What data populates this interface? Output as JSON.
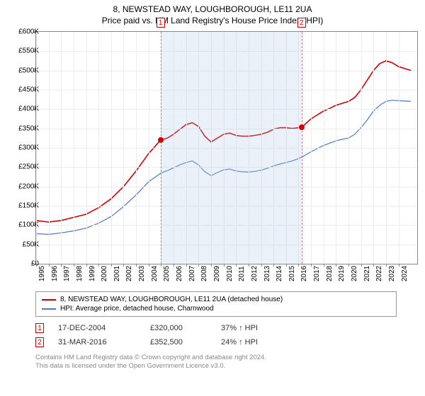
{
  "title": "8, NEWSTEAD WAY, LOUGHBOROUGH, LE11 2UA",
  "subtitle": "Price paid vs. HM Land Registry's House Price Index (HPI)",
  "chart": {
    "type": "line",
    "background_color": "#ffffff",
    "grid_color": "#ececec",
    "axis_color": "#888888",
    "tick_fontsize": 10,
    "x_years": [
      1995,
      1996,
      1997,
      1998,
      1999,
      2000,
      2001,
      2002,
      2003,
      2004,
      2005,
      2006,
      2007,
      2008,
      2009,
      2010,
      2011,
      2012,
      2013,
      2014,
      2015,
      2016,
      2017,
      2018,
      2019,
      2020,
      2021,
      2022,
      2023,
      2024
    ],
    "x_range": [
      1995,
      2025.5
    ],
    "y_range": [
      0,
      600
    ],
    "y_ticks": [
      0,
      50,
      100,
      150,
      200,
      250,
      300,
      350,
      400,
      450,
      500,
      550,
      600
    ],
    "y_tick_labels": [
      "£0",
      "£50K",
      "£100K",
      "£150K",
      "£200K",
      "£250K",
      "£300K",
      "£350K",
      "£400K",
      "£450K",
      "£500K",
      "£550K",
      "£600K"
    ],
    "shade_band": {
      "x_start": 2004.96,
      "x_end": 2016.25,
      "color": "rgba(170,200,230,0.25)"
    },
    "series": {
      "price_paid": {
        "color": "#d00000",
        "line_width": 1.6,
        "points": [
          [
            1995,
            112
          ],
          [
            1996,
            108
          ],
          [
            1997,
            112
          ],
          [
            1998,
            120
          ],
          [
            1999,
            128
          ],
          [
            2000,
            145
          ],
          [
            2001,
            168
          ],
          [
            2002,
            200
          ],
          [
            2003,
            240
          ],
          [
            2004,
            285
          ],
          [
            2004.96,
            320
          ],
          [
            2005.5,
            325
          ],
          [
            2006,
            335
          ],
          [
            2006.5,
            348
          ],
          [
            2007,
            360
          ],
          [
            2007.5,
            365
          ],
          [
            2008,
            355
          ],
          [
            2008.5,
            330
          ],
          [
            2009,
            315
          ],
          [
            2009.5,
            325
          ],
          [
            2010,
            335
          ],
          [
            2010.5,
            338
          ],
          [
            2011,
            332
          ],
          [
            2011.5,
            330
          ],
          [
            2012,
            330
          ],
          [
            2012.5,
            332
          ],
          [
            2013,
            335
          ],
          [
            2013.5,
            340
          ],
          [
            2014,
            348
          ],
          [
            2014.5,
            352
          ],
          [
            2015,
            352
          ],
          [
            2015.5,
            350
          ],
          [
            2016,
            352
          ],
          [
            2016.25,
            352.5
          ],
          [
            2016.5,
            360
          ],
          [
            2017,
            375
          ],
          [
            2017.5,
            385
          ],
          [
            2018,
            395
          ],
          [
            2018.5,
            402
          ],
          [
            2019,
            410
          ],
          [
            2019.5,
            415
          ],
          [
            2020,
            420
          ],
          [
            2020.5,
            430
          ],
          [
            2021,
            450
          ],
          [
            2021.5,
            475
          ],
          [
            2022,
            500
          ],
          [
            2022.5,
            518
          ],
          [
            2023,
            525
          ],
          [
            2023.5,
            520
          ],
          [
            2024,
            510
          ],
          [
            2024.5,
            505
          ],
          [
            2025,
            500
          ]
        ]
      },
      "hpi": {
        "color": "#4a78c8",
        "line_width": 1.2,
        "points": [
          [
            1995,
            78
          ],
          [
            1996,
            76
          ],
          [
            1997,
            80
          ],
          [
            1998,
            85
          ],
          [
            1999,
            92
          ],
          [
            2000,
            105
          ],
          [
            2001,
            122
          ],
          [
            2002,
            148
          ],
          [
            2003,
            178
          ],
          [
            2004,
            212
          ],
          [
            2005,
            235
          ],
          [
            2005.5,
            241
          ],
          [
            2006,
            248
          ],
          [
            2006.5,
            256
          ],
          [
            2007,
            262
          ],
          [
            2007.5,
            266
          ],
          [
            2008,
            256
          ],
          [
            2008.5,
            238
          ],
          [
            2009,
            228
          ],
          [
            2009.5,
            236
          ],
          [
            2010,
            243
          ],
          [
            2010.5,
            245
          ],
          [
            2011,
            240
          ],
          [
            2011.5,
            238
          ],
          [
            2012,
            237
          ],
          [
            2012.5,
            239
          ],
          [
            2013,
            242
          ],
          [
            2013.5,
            247
          ],
          [
            2014,
            253
          ],
          [
            2014.5,
            258
          ],
          [
            2015,
            262
          ],
          [
            2015.5,
            266
          ],
          [
            2016,
            272
          ],
          [
            2016.5,
            280
          ],
          [
            2017,
            290
          ],
          [
            2017.5,
            298
          ],
          [
            2018,
            306
          ],
          [
            2018.5,
            312
          ],
          [
            2019,
            318
          ],
          [
            2019.5,
            322
          ],
          [
            2020,
            325
          ],
          [
            2020.5,
            335
          ],
          [
            2021,
            352
          ],
          [
            2021.5,
            372
          ],
          [
            2022,
            395
          ],
          [
            2022.5,
            410
          ],
          [
            2023,
            420
          ],
          [
            2023.5,
            423
          ],
          [
            2024,
            422
          ],
          [
            2024.5,
            421
          ],
          [
            2025,
            420
          ]
        ]
      }
    },
    "markers": [
      {
        "n": "1",
        "x": 2004.96,
        "y": 320
      },
      {
        "n": "2",
        "x": 2016.25,
        "y": 352.5
      }
    ]
  },
  "legend": {
    "items": [
      {
        "color": "#d00000",
        "label": "8, NEWSTEAD WAY, LOUGHBOROUGH, LE11 2UA (detached house)"
      },
      {
        "color": "#4a78c8",
        "label": "HPI: Average price, detached house, Charnwood"
      }
    ]
  },
  "sales": [
    {
      "n": "1",
      "date": "17-DEC-2004",
      "price": "£320,000",
      "delta": "37% ↑ HPI"
    },
    {
      "n": "2",
      "date": "31-MAR-2016",
      "price": "£352,500",
      "delta": "24% ↑ HPI"
    }
  ],
  "footer": {
    "line1": "Contains HM Land Registry data © Crown copyright and database right 2024.",
    "line2": "This data is licensed under the Open Government Licence v3.0."
  }
}
